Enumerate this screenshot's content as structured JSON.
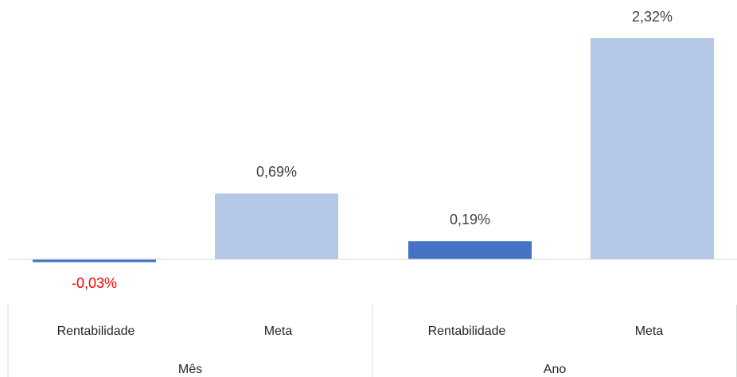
{
  "chart_data": {
    "type": "bar",
    "categories": [
      "Rentabilidade",
      "Meta",
      "Rentabilidade",
      "Meta"
    ],
    "groups": [
      "Mês",
      "Ano"
    ],
    "values": [
      -0.03,
      0.69,
      0.19,
      2.32
    ],
    "value_labels": [
      "-0,03%",
      "0,69%",
      "0,19%",
      "2,32%"
    ],
    "colors": [
      "#4472c4",
      "#b4c7e7",
      "#4472c4",
      "#b4c7e7"
    ],
    "label_colors": [
      "#ff0000",
      "#404040",
      "#404040",
      "#404040"
    ]
  }
}
